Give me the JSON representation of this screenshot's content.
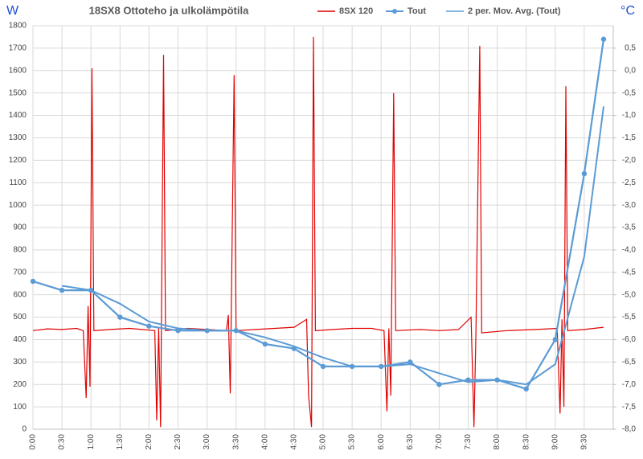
{
  "chart_data": {
    "type": "line",
    "title": "18SX8 Ottoteho ja ulkolämpötila",
    "y_label": "W",
    "y2_label": "°C",
    "xlim": [
      0,
      600
    ],
    "xticks": [
      {
        "value": 0,
        "label": "0:00"
      },
      {
        "value": 30,
        "label": "0:30"
      },
      {
        "value": 60,
        "label": "1:00"
      },
      {
        "value": 90,
        "label": "1:30"
      },
      {
        "value": 120,
        "label": "2:00"
      },
      {
        "value": 150,
        "label": "2:30"
      },
      {
        "value": 180,
        "label": "3:00"
      },
      {
        "value": 210,
        "label": "3:30"
      },
      {
        "value": 240,
        "label": "4:00"
      },
      {
        "value": 270,
        "label": "4:30"
      },
      {
        "value": 300,
        "label": "5:00"
      },
      {
        "value": 330,
        "label": "5:30"
      },
      {
        "value": 360,
        "label": "6:00"
      },
      {
        "value": 390,
        "label": "6:30"
      },
      {
        "value": 420,
        "label": "7:00"
      },
      {
        "value": 450,
        "label": "7:30"
      },
      {
        "value": 480,
        "label": "8:00"
      },
      {
        "value": 510,
        "label": "8:30"
      },
      {
        "value": 540,
        "label": "9:00"
      },
      {
        "value": 570,
        "label": "9:30"
      }
    ],
    "ylim": [
      0,
      1800
    ],
    "yticks": [
      0,
      100,
      200,
      300,
      400,
      500,
      600,
      700,
      800,
      900,
      1000,
      1100,
      1200,
      1300,
      1400,
      1500,
      1600,
      1700,
      1800
    ],
    "y2lim": [
      -8,
      1
    ],
    "y2ticks": [
      {
        "value": -8,
        "label": "-8,0"
      },
      {
        "value": -7.5,
        "label": "-7,5"
      },
      {
        "value": -7,
        "label": "-7,0"
      },
      {
        "value": -6.5,
        "label": "-6,5"
      },
      {
        "value": -6,
        "label": "-6,0"
      },
      {
        "value": -5.5,
        "label": "-5,5"
      },
      {
        "value": -5,
        "label": "-5,0"
      },
      {
        "value": -4.5,
        "label": "-4,5"
      },
      {
        "value": -4,
        "label": "-4,0"
      },
      {
        "value": -3.5,
        "label": "-3,5"
      },
      {
        "value": -3,
        "label": "-3,0"
      },
      {
        "value": -2.5,
        "label": "-2,5"
      },
      {
        "value": -2,
        "label": "-2,0"
      },
      {
        "value": -1.5,
        "label": "-1,5"
      },
      {
        "value": -1,
        "label": "-1,0"
      },
      {
        "value": -0.5,
        "label": "-0,5"
      },
      {
        "value": 0,
        "label": "0,0"
      },
      {
        "value": 0.5,
        "label": "0,5"
      }
    ],
    "grid": true,
    "series": [
      {
        "name": "8SX 120",
        "color": "#e00000",
        "markers": false,
        "x": [
          0,
          15,
          30,
          45,
          52,
          55,
          57,
          59,
          61,
          63,
          80,
          100,
          126,
          128,
          130,
          132,
          135,
          137,
          160,
          180,
          200,
          202,
          204,
          208,
          210,
          230,
          250,
          270,
          283,
          285,
          288,
          290,
          292,
          310,
          330,
          350,
          363,
          366,
          368,
          370,
          373,
          375,
          400,
          420,
          440,
          453,
          456,
          458,
          462,
          464,
          490,
          520,
          542,
          545,
          547,
          549,
          551,
          553,
          570,
          590
        ],
        "values": [
          440,
          448,
          445,
          450,
          440,
          140,
          550,
          190,
          1610,
          440,
          445,
          450,
          440,
          40,
          450,
          10,
          1670,
          440,
          450,
          445,
          440,
          510,
          160,
          1580,
          440,
          445,
          450,
          455,
          490,
          150,
          10,
          1750,
          440,
          445,
          450,
          450,
          440,
          80,
          450,
          150,
          1500,
          440,
          445,
          440,
          445,
          500,
          10,
          420,
          1710,
          430,
          440,
          445,
          450,
          70,
          490,
          100,
          1530,
          440,
          445,
          455
        ]
      },
      {
        "name": "Tout",
        "color": "#5b9bd5",
        "markers": true,
        "axis": "y2",
        "x": [
          0,
          30,
          60,
          90,
          120,
          150,
          180,
          210,
          240,
          270,
          300,
          330,
          360,
          390,
          420,
          450,
          480,
          510,
          540,
          570,
          590
        ],
        "values": [
          -4.7,
          -4.9,
          -4.9,
          -5.5,
          -5.7,
          -5.8,
          -5.8,
          -5.8,
          -6.1,
          -6.2,
          -6.6,
          -6.6,
          -6.6,
          -6.5,
          -7.0,
          -6.9,
          -6.9,
          -7.1,
          -6.0,
          -2.3,
          0.7
        ]
      },
      {
        "name": "2 per. Mov. Avg. (Tout)",
        "color": "#5b9bd5",
        "markers": false,
        "axis": "y2",
        "x": [
          30,
          60,
          90,
          120,
          150,
          180,
          210,
          240,
          270,
          300,
          330,
          360,
          390,
          420,
          450,
          480,
          510,
          540,
          570,
          590
        ],
        "values": [
          -4.8,
          -4.9,
          -5.2,
          -5.6,
          -5.75,
          -5.8,
          -5.8,
          -5.95,
          -6.15,
          -6.4,
          -6.6,
          -6.6,
          -6.55,
          -6.75,
          -6.95,
          -6.9,
          -7.0,
          -6.55,
          -4.15,
          -0.8
        ]
      }
    ]
  }
}
